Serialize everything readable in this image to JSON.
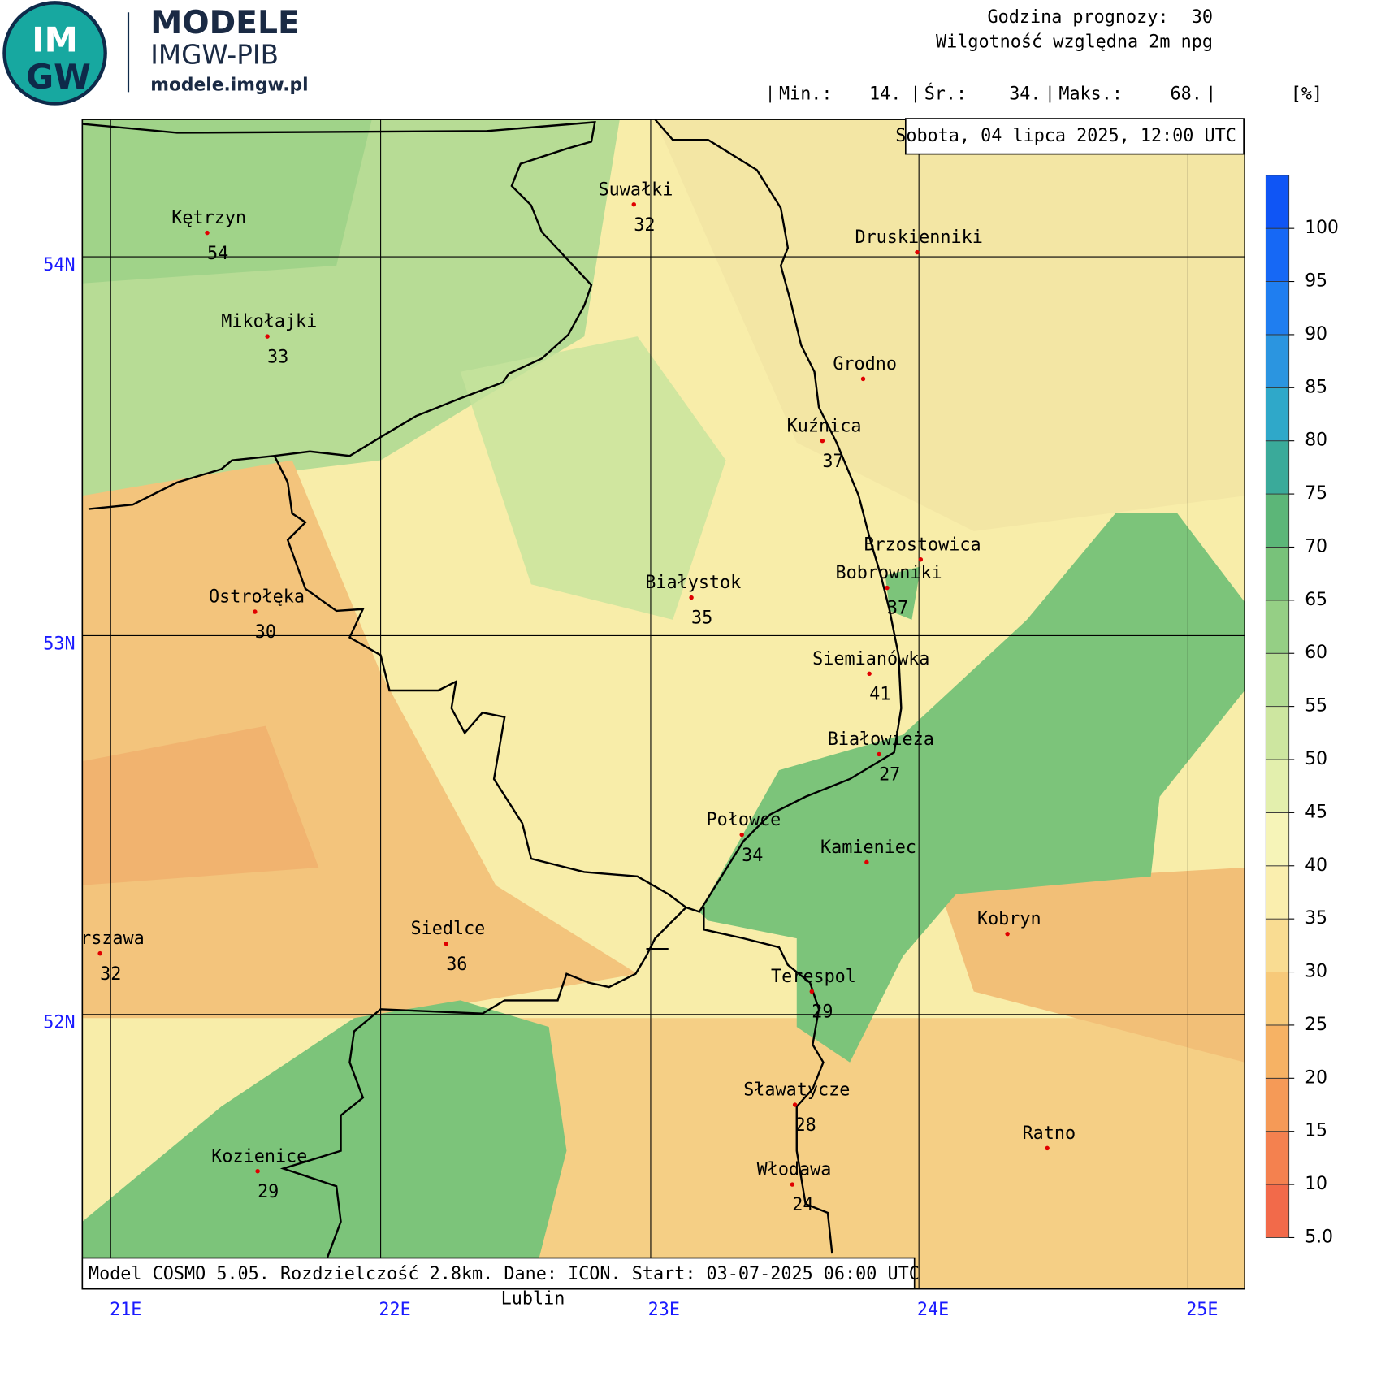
{
  "header": {
    "logo_top": "IM",
    "logo_bottom": "GW",
    "brand": "MODELE",
    "org": "IMGW-PIB",
    "url": "modele.imgw.pl",
    "forecast_hour_label": "Godzina prognozy:",
    "forecast_hour": 30,
    "variable": "Wilgotność względna 2m npg"
  },
  "stats": {
    "min_label": "Min.:",
    "min": "14.",
    "mean_label": "Śr.:",
    "mean": "34.",
    "max_label": "Maks.:",
    "max": "68.",
    "unit": "[%]"
  },
  "date": "Sobota, 04 lipca 2025, 12:00 UTC",
  "footer": "Model COSMO 5.05. Rozdzielczość 2.8km. Dane: ICON. Start: 03-07-2025 06:00 UTC",
  "lat_labels": [
    "54N",
    "53N",
    "52N"
  ],
  "lon_labels": [
    "21E",
    "22E",
    "23E",
    "24E",
    "25E"
  ],
  "cities": [
    {
      "name": "Kętrzyn",
      "value": 54
    },
    {
      "name": "Suwałki",
      "value": 32
    },
    {
      "name": "Druskienniki",
      "value": null
    },
    {
      "name": "Mikołajki",
      "value": 33
    },
    {
      "name": "Grodno",
      "value": null
    },
    {
      "name": "Kuźnica",
      "value": 37
    },
    {
      "name": "Brzostowica",
      "value": null
    },
    {
      "name": "Bobrowniki",
      "value": 37
    },
    {
      "name": "Białystok",
      "value": 35
    },
    {
      "name": "Ostrołęka",
      "value": 30
    },
    {
      "name": "Siemianówka",
      "value": 41
    },
    {
      "name": "Białowieża",
      "value": 27
    },
    {
      "name": "Połowce",
      "value": 34
    },
    {
      "name": "Kamieniec",
      "value": null
    },
    {
      "name": "Kobryn",
      "value": null
    },
    {
      "name": "Warszawa",
      "value": 32
    },
    {
      "name": "Siedlce",
      "value": 36
    },
    {
      "name": "Terespol",
      "value": 29
    },
    {
      "name": "Sławatycze",
      "value": 28
    },
    {
      "name": "Ratno",
      "value": null
    },
    {
      "name": "Kozienice",
      "value": 29
    },
    {
      "name": "Włodawa",
      "value": 24
    },
    {
      "name": "Lublin",
      "value": null
    }
  ],
  "colorbar": {
    "ticks": [
      {
        "value": 5,
        "label": "5.0"
      },
      10,
      15,
      20,
      25,
      30,
      35,
      40,
      45,
      50,
      55,
      60,
      65,
      70,
      75,
      80,
      85,
      90,
      95,
      100
    ],
    "colors": [
      "#f26a4a",
      "#f4814f",
      "#f59a57",
      "#f6b264",
      "#f7c979",
      "#f9dc92",
      "#faeeae",
      "#f6f4b8",
      "#e3efad",
      "#cde6a0",
      "#b3dc93",
      "#95cf85",
      "#78c27a",
      "#5cb678",
      "#3aaa9a",
      "#2fa8c9",
      "#2b95e0",
      "#1f7ef0",
      "#1668f5",
      "#0f55f5"
    ]
  }
}
